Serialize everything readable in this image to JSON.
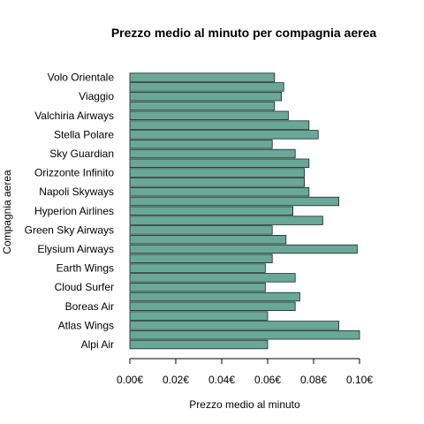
{
  "chart_data": {
    "type": "bar",
    "orientation": "horizontal",
    "title": "Prezzo medio al minuto per compagnia aerea",
    "xlabel": "Prezzo medio al minuto",
    "ylabel": "Compagnia aerea",
    "xlim": [
      0,
      0.1
    ],
    "x_ticks": [
      "0.00€",
      "0.02€",
      "0.04€",
      "0.06€",
      "0.08€",
      "0.10€"
    ],
    "x_tick_values": [
      0,
      0.02,
      0.04,
      0.06,
      0.08,
      0.1
    ],
    "bar_color": "#66A996",
    "categories": [
      "Alpi Air",
      "",
      "Atlas Wings",
      "",
      "Boreas Air",
      "",
      "Cloud Surfer",
      "",
      "Earth Wings",
      "",
      "Elysium Airways",
      "",
      "Green Sky Airways",
      "",
      "Hyperion Airlines",
      "",
      "Napoli Skyways",
      "",
      "Orizzonte Infinito",
      "",
      "Sky Guardian",
      "",
      "Stella Polare",
      "",
      "Valchiria Airways",
      "",
      "Viaggio",
      "",
      "Volo Orientale",
      ""
    ],
    "values": [
      0.06,
      0.1,
      0.091,
      0.06,
      0.072,
      0.074,
      0.059,
      0.072,
      0.059,
      0.062,
      0.099,
      0.068,
      0.062,
      0.084,
      0.071,
      0.091,
      0.078,
      0.076,
      0.076,
      0.078,
      0.072,
      0.062,
      0.082,
      0.078,
      0.069,
      0.063,
      0.066,
      0.067,
      0.063,
      0.0
    ]
  }
}
